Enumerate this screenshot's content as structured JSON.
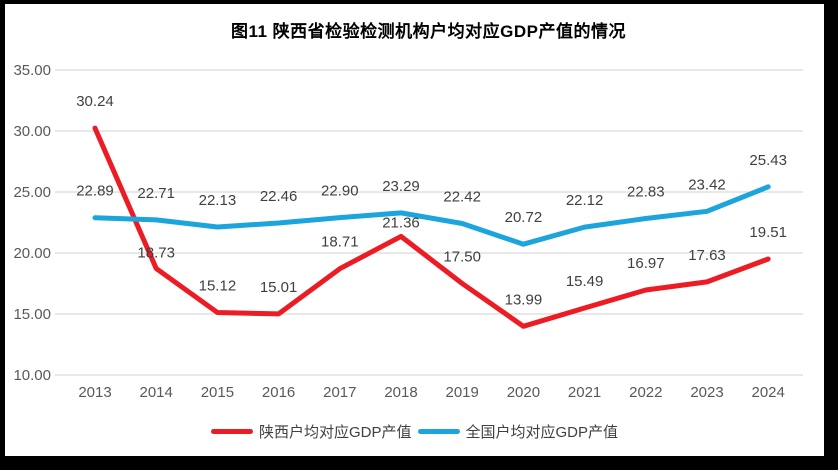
{
  "chart": {
    "title": "图11  陕西省检验检测机构户均对应GDP产值的情况"
  },
  "chart_data": {
    "type": "line",
    "title": "图11  陕西省检验检测机构户均对应GDP产值的情况",
    "categories": [
      "2013",
      "2014",
      "2015",
      "2016",
      "2017",
      "2018",
      "2019",
      "2020",
      "2021",
      "2022",
      "2023",
      "2024"
    ],
    "series": [
      {
        "name": "陕西户均对应GDP产值",
        "color": "#ed1c24",
        "values": [
          30.24,
          18.73,
          15.12,
          15.01,
          18.71,
          21.36,
          17.5,
          13.99,
          15.49,
          16.97,
          17.63,
          19.51
        ],
        "label_offsets": {
          "1": 16,
          "5": 14
        }
      },
      {
        "name": "全国户均对应GDP产值",
        "color": "#1ca4dc",
        "values": [
          22.89,
          22.71,
          22.13,
          22.46,
          22.9,
          23.29,
          22.42,
          20.72,
          22.12,
          22.83,
          23.42,
          25.43
        ],
        "label_offsets": {}
      }
    ],
    "xlabel": "",
    "ylabel": "",
    "ylim": [
      10,
      35
    ],
    "yticks": [
      "35.00",
      "30.00",
      "25.00",
      "20.00",
      "15.00",
      "10.00"
    ],
    "grid": true,
    "legend_position": "bottom",
    "colors": {
      "gridline": "#d9d9d9",
      "axis_text": "#595959",
      "data_label": "#404040",
      "title_text": "#000000",
      "plot_background": "#ffffff",
      "page_border": "#000000"
    }
  }
}
